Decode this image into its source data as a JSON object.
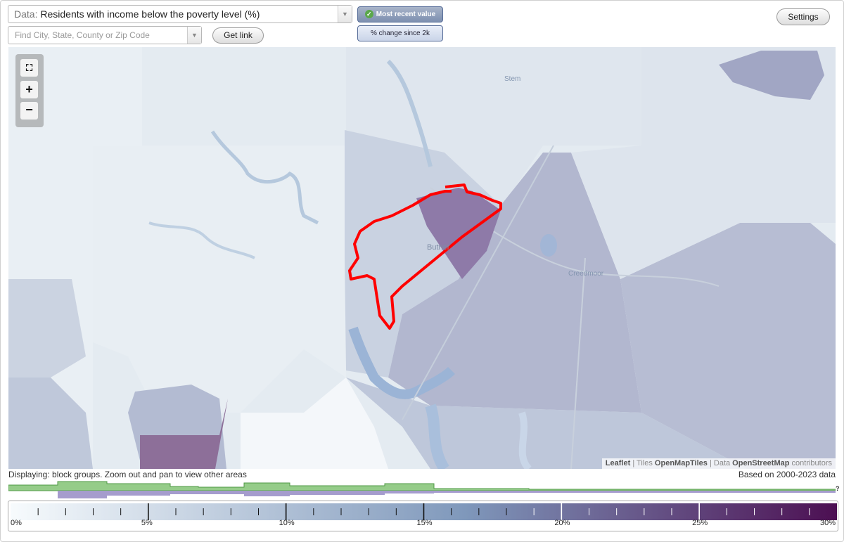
{
  "toolbar": {
    "data_prefix": "Data:",
    "data_value": "Residents with income below the poverty level (%)",
    "search_placeholder": "Find City, State, County or Zip Code",
    "get_link_label": "Get link",
    "settings_label": "Settings",
    "most_recent_label": "Most recent value",
    "change_label": "% change since 2k",
    "dropdown_icon": "triangle-down-icon",
    "check_icon": "checkmark-icon"
  },
  "map": {
    "places": [
      "Stem",
      "Butner",
      "Creedmoor"
    ],
    "zoom": {
      "full_extent_icon": "fullscreen-icon",
      "zoom_in_label": "+",
      "zoom_out_label": "−"
    },
    "attribution": {
      "leaflet": "Leaflet",
      "sep1": " | Tiles ",
      "tiles": "OpenMapTiles",
      "sep2": " | Data ",
      "data": "OpenStreetMap",
      "tail": " contributors"
    },
    "highlight_color": "#ff0000",
    "fill_color": "#8e7aa8"
  },
  "status": {
    "displaying": "Displaying: block groups. Zoom out and pan to view other areas",
    "based_on": "Based on 2000-2023 data",
    "help": "?"
  },
  "legend": {
    "min": 0,
    "max": 30,
    "labels": [
      "0%",
      "5%",
      "10%",
      "15%",
      "20%",
      "25%",
      "30%"
    ],
    "color_start": "#f7fbfd",
    "color_mid": "#7f98bb",
    "color_end": "#4c0f52"
  }
}
